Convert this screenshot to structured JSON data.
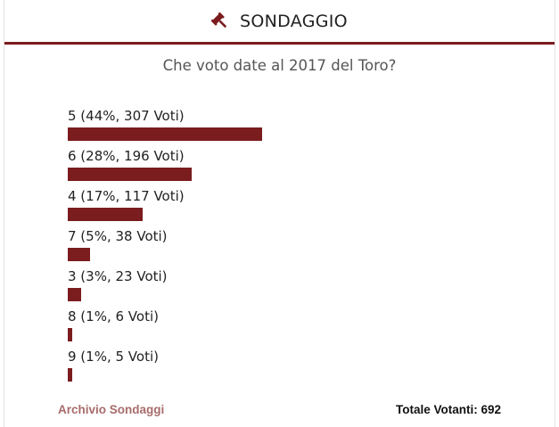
{
  "header": {
    "title": "SONDAGGIO",
    "icon": "gavel-icon"
  },
  "poll": {
    "question": "Che voto date al 2017 del Toro?",
    "options": [
      {
        "label": "5 (44%, 307 Voti)",
        "percent": 44,
        "votes": 307
      },
      {
        "label": "6 (28%, 196 Voti)",
        "percent": 28,
        "votes": 196
      },
      {
        "label": "4 (17%, 117 Voti)",
        "percent": 17,
        "votes": 117
      },
      {
        "label": "7 (5%, 38 Voti)",
        "percent": 5,
        "votes": 38
      },
      {
        "label": "3 (3%, 23 Voti)",
        "percent": 3,
        "votes": 23
      },
      {
        "label": "8 (1%, 6 Voti)",
        "percent": 1,
        "votes": 6
      },
      {
        "label": "9 (1%, 5 Voti)",
        "percent": 1,
        "votes": 5
      }
    ]
  },
  "footer": {
    "archive_label": "Archivio Sondaggi",
    "total_label": "Totale Votanti: 692"
  },
  "colors": {
    "accent": "#7b1c1f",
    "link": "#a86b6b"
  }
}
